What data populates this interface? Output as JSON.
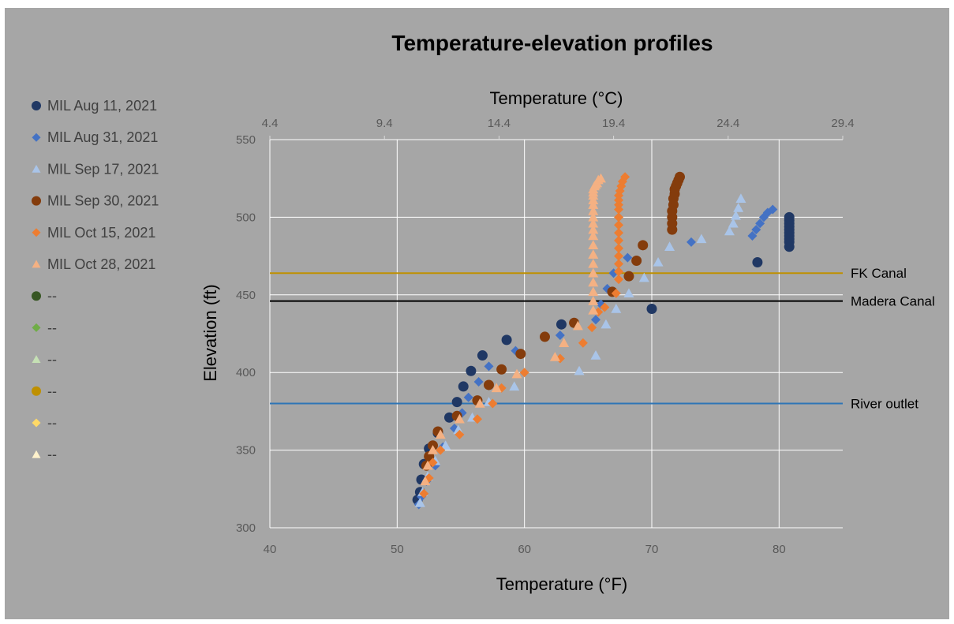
{
  "chart_data": {
    "type": "scatter",
    "title": "Temperature-elevation profiles",
    "xlabel": "Temperature (°F)",
    "x2label": "Temperature (°C)",
    "ylabel": "Elevation (ft)",
    "xlim": [
      40,
      85
    ],
    "ylim": [
      300,
      550
    ],
    "x_ticks": [
      "40",
      "50",
      "60",
      "70",
      "80"
    ],
    "x_tick_values": [
      40,
      50,
      60,
      70,
      80
    ],
    "x2_ticks": [
      "4.4",
      "9.4",
      "14.4",
      "19.4",
      "24.4",
      "29.4"
    ],
    "x2_tick_values_f": [
      40,
      49,
      58,
      67,
      76,
      85
    ],
    "y_ticks": [
      "300",
      "350",
      "400",
      "450",
      "500",
      "550"
    ],
    "y_tick_values": [
      300,
      350,
      400,
      450,
      500,
      550
    ],
    "grid": true,
    "legend_position": "left",
    "reference_lines": [
      {
        "name": "FK Canal",
        "y": 464,
        "color": "#BF9000"
      },
      {
        "name": "Madera Canal",
        "y": 446,
        "color": "#000000"
      },
      {
        "name": "River outlet",
        "y": 380,
        "color": "#2E75B6"
      }
    ],
    "series": [
      {
        "name": "MIL Aug 11, 2021",
        "marker": "circle",
        "color": "#203864",
        "x": [
          51.6,
          51.8,
          51.9,
          52.1,
          52.5,
          53.2,
          54.1,
          54.7,
          55.2,
          55.8,
          56.7,
          58.6,
          62.9,
          70.0,
          78.3,
          80.8,
          80.8,
          80.8,
          80.8,
          80.8,
          80.8,
          80.8,
          80.8,
          80.8,
          80.8
        ],
        "y": [
          318,
          323,
          331,
          341,
          351,
          361,
          371,
          381,
          391,
          401,
          411,
          421,
          431,
          441,
          471,
          481,
          484,
          486,
          488,
          490,
          492,
          494,
          496,
          498,
          500
        ]
      },
      {
        "name": "MIL Aug 31, 2021",
        "marker": "diamond",
        "color": "#4472C4",
        "x": [
          51.7,
          51.9,
          52.3,
          53.0,
          53.6,
          54.5,
          55.1,
          55.6,
          56.4,
          57.2,
          59.3,
          62.8,
          65.6,
          66.0,
          66.5,
          67.0,
          68.1,
          73.1,
          77.9,
          78.2,
          78.5,
          78.8,
          79.1,
          79.5
        ],
        "y": [
          315,
          320,
          330,
          340,
          352,
          364,
          374,
          384,
          394,
          404,
          414,
          424,
          434,
          444,
          454,
          464,
          474,
          484,
          488,
          492,
          496,
          500,
          503,
          505
        ]
      },
      {
        "name": "MIL Sep 17, 2021",
        "marker": "triangle",
        "color": "#A9C4E8",
        "x": [
          51.8,
          52.0,
          52.4,
          53.0,
          53.8,
          54.8,
          55.9,
          57.2,
          59.2,
          64.3,
          65.6,
          66.4,
          67.2,
          68.2,
          69.4,
          70.5,
          71.4,
          73.9,
          76.1,
          76.4,
          76.6,
          76.8,
          77.0
        ],
        "y": [
          316,
          323,
          333,
          343,
          353,
          363,
          371,
          381,
          391,
          401,
          411,
          431,
          441,
          451,
          461,
          471,
          481,
          486,
          491,
          496,
          501,
          506,
          512
        ]
      },
      {
        "name": "MIL Sep 30, 2021",
        "marker": "circle",
        "color": "#843C0C",
        "x": [
          52.3,
          52.5,
          52.8,
          53.2,
          54.7,
          56.3,
          57.2,
          58.2,
          59.7,
          61.6,
          63.9,
          66.9,
          68.2,
          68.8,
          69.3,
          71.6,
          71.6,
          71.6,
          71.6,
          71.7,
          71.7,
          71.8,
          71.8,
          71.9,
          72.0,
          72.1,
          72.2
        ],
        "y": [
          340,
          346,
          353,
          362,
          372,
          382,
          392,
          402,
          412,
          423,
          432,
          452,
          462,
          472,
          482,
          492,
          496,
          500,
          504,
          508,
          512,
          515,
          518,
          520,
          522,
          524,
          526
        ]
      },
      {
        "name": "MIL Oct 15, 2021",
        "marker": "diamond",
        "color": "#ED7D31",
        "x": [
          52.1,
          52.5,
          52.8,
          53.4,
          54.9,
          56.3,
          57.5,
          58.2,
          60.0,
          62.8,
          64.6,
          65.3,
          65.8,
          66.3,
          67.2,
          67.4,
          67.4,
          67.4,
          67.4,
          67.4,
          67.4,
          67.4,
          67.4,
          67.4,
          67.4,
          67.4,
          67.4,
          67.4,
          67.5,
          67.6,
          67.7,
          67.9
        ],
        "y": [
          322,
          332,
          342,
          350,
          360,
          370,
          380,
          390,
          400,
          409,
          419,
          429,
          439,
          442,
          451,
          460,
          465,
          470,
          475,
          480,
          485,
          490,
          495,
          500,
          505,
          508,
          511,
          514,
          517,
          520,
          523,
          526
        ]
      },
      {
        "name": "MIL Oct 28, 2021",
        "marker": "triangle",
        "color": "#F4B183",
        "x": [
          52.2,
          52.4,
          52.8,
          53.4,
          54.9,
          56.5,
          57.8,
          59.4,
          62.4,
          63.1,
          64.2,
          65.4,
          65.4,
          65.4,
          65.4,
          65.4,
          65.4,
          65.4,
          65.4,
          65.4,
          65.4,
          65.4,
          65.4,
          65.4,
          65.4,
          65.4,
          65.4,
          65.4,
          65.4,
          65.5,
          65.6,
          65.7,
          65.8,
          66.0
        ],
        "y": [
          330,
          340,
          350,
          360,
          370,
          380,
          390,
          399,
          410,
          419,
          430,
          440,
          446,
          452,
          458,
          464,
          470,
          476,
          482,
          488,
          492,
          496,
          500,
          504,
          508,
          511,
          514,
          516,
          518,
          520,
          521,
          522,
          524,
          525
        ]
      },
      {
        "name": "--",
        "marker": "circle",
        "color": "#375623",
        "x": [],
        "y": []
      },
      {
        "name": "--",
        "marker": "diamond",
        "color": "#70AD47",
        "x": [],
        "y": []
      },
      {
        "name": "--",
        "marker": "triangle",
        "color": "#C5E0B4",
        "x": [],
        "y": []
      },
      {
        "name": "--",
        "marker": "circle",
        "color": "#BF9000",
        "x": [],
        "y": []
      },
      {
        "name": "--",
        "marker": "diamond",
        "color": "#FFD966",
        "x": [],
        "y": []
      },
      {
        "name": "--",
        "marker": "triangle",
        "color": "#FFF2CC",
        "x": [],
        "y": []
      }
    ]
  }
}
